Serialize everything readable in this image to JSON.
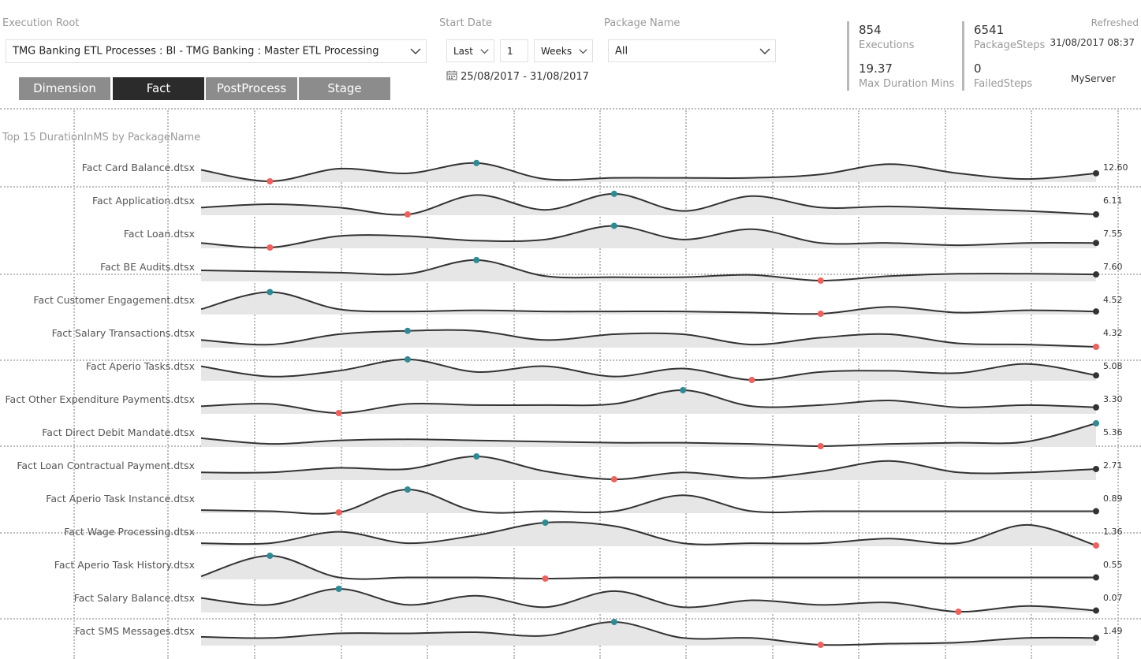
{
  "filters": {
    "execution_root_label": "Execution Root",
    "execution_root_value": "TMG Banking ETL Processes : BI - TMG Banking : Master ETL Processing",
    "start_date_label": "Start Date",
    "period_mode": "Last",
    "period_count": "1",
    "period_unit": "Weeks",
    "date_range": "25/08/2017 - 31/08/2017",
    "package_name_label": "Package Name",
    "package_name_value": "All"
  },
  "tabs": [
    {
      "label": "Dimension",
      "active": false
    },
    {
      "label": "Fact",
      "active": true
    },
    {
      "label": "PostProcess",
      "active": false
    },
    {
      "label": "Stage",
      "active": false
    }
  ],
  "kpis": {
    "executions_value": "854",
    "executions_label": "Executions",
    "max_duration_value": "19.37",
    "max_duration_label": "Max Duration Mins",
    "package_steps_value": "6541",
    "package_steps_label": "PackageSteps",
    "failed_steps_value": "0",
    "failed_steps_label": "FailedSteps",
    "refreshed_label": "Refreshed",
    "refreshed_value": "31/08/2017 08:37",
    "server": "MyServer"
  },
  "colors": {
    "max_marker": "#2e8b96",
    "min_marker": "#f0605d",
    "last_marker": "#333333",
    "area": "#e6e6e6",
    "line": "#333333"
  },
  "chart_data": {
    "type": "line",
    "title": "Top 15  DurationInMS by PackageName",
    "series": [
      {
        "name": "Fact Card Balance.dtsx",
        "last": "12.60",
        "values": [
          0.5,
          0,
          0.55,
          0.35,
          0.8,
          0.1,
          0.15,
          0.15,
          0.15,
          0.3,
          0.75,
          0.35,
          0.1,
          0.35
        ],
        "max_index": 4,
        "min_index": 1
      },
      {
        "name": "Fact Application.dtsx",
        "last": "6.11",
        "values": [
          0.3,
          0.45,
          0.3,
          0,
          0.85,
          0.2,
          0.9,
          0.15,
          0.8,
          0.3,
          0.35,
          0.25,
          0.15,
          0
        ],
        "max_index": 6,
        "min_index": 3
      },
      {
        "name": "Fact Loan.dtsx",
        "last": "7.55",
        "values": [
          0.2,
          0,
          0.5,
          0.5,
          0.3,
          0.35,
          0.95,
          0.35,
          0.8,
          0.2,
          0.2,
          0.1,
          0.2,
          0.2
        ],
        "max_index": 6,
        "min_index": 1
      },
      {
        "name": "Fact BE Audits.dtsx",
        "last": "7.60",
        "values": [
          0.45,
          0.4,
          0.35,
          0.3,
          0.9,
          0.2,
          0.15,
          0.15,
          0.25,
          0,
          0.2,
          0.3,
          0.3,
          0.27
        ],
        "max_index": 4,
        "min_index": 9
      },
      {
        "name": "Fact Customer Engagement.dtsx",
        "last": "4.52",
        "values": [
          0.2,
          0.95,
          0.2,
          0.1,
          0.15,
          0.1,
          0.1,
          0.1,
          0.05,
          0,
          0.3,
          0.05,
          0.15,
          0.1
        ],
        "max_index": 1,
        "min_index": 9
      },
      {
        "name": "Fact Salary Transactions.dtsx",
        "last": "4.32",
        "values": [
          0.3,
          0.1,
          0.55,
          0.7,
          0.7,
          0.3,
          0.55,
          0.55,
          0.1,
          0.4,
          0.55,
          0.15,
          0.1,
          0
        ],
        "max_index": 3,
        "min_index": 13
      },
      {
        "name": "Fact Aperio Tasks.dtsx",
        "last": "5.08",
        "values": [
          0.6,
          0.15,
          0.4,
          0.9,
          0.35,
          0.6,
          0.15,
          0.5,
          0,
          0.35,
          0.4,
          0.3,
          0.7,
          0.2
        ],
        "max_index": 3,
        "min_index": 8
      },
      {
        "name": "Fact Other Expenditure Payments.dtsx",
        "last": "3.30",
        "values": [
          0.3,
          0.4,
          0,
          0.4,
          0.35,
          0.35,
          0.4,
          1,
          0.3,
          0.35,
          0.55,
          0.25,
          0.35,
          0.25
        ],
        "max_index": 7,
        "min_index": 2
      },
      {
        "name": "Fact Direct Debit Mandate.dtsx",
        "last": "5.36",
        "values": [
          0.35,
          0.1,
          0.25,
          0.3,
          0.25,
          0.2,
          0.15,
          0.15,
          0.1,
          0,
          0.1,
          0.15,
          0.2,
          1
        ],
        "max_index": 13,
        "min_index": 9
      },
      {
        "name": "Fact Loan Contractual Payment.dtsx",
        "last": "2.71",
        "values": [
          0.3,
          0.3,
          0.5,
          0.45,
          1,
          0.35,
          0,
          0.3,
          0.05,
          0.35,
          0.8,
          0.3,
          0.3,
          0.45
        ],
        "max_index": 4,
        "min_index": 6
      },
      {
        "name": "Fact Aperio Task Instance.dtsx",
        "last": "0.89",
        "values": [
          0.1,
          0.05,
          0,
          1,
          0.05,
          0.05,
          0.05,
          0.75,
          0.05,
          0.05,
          0.05,
          0.05,
          0.05,
          0.05
        ],
        "max_index": 3,
        "min_index": 2
      },
      {
        "name": "Fact Wage Processing.dtsx",
        "last": "1.36",
        "values": [
          0.1,
          0.1,
          0.6,
          0.1,
          0.45,
          1,
          0.85,
          0.1,
          0.1,
          0.1,
          0.3,
          0.1,
          0.9,
          0
        ],
        "max_index": 5,
        "min_index": 13
      },
      {
        "name": "Fact Aperio Task History.dtsx",
        "last": "0.55",
        "values": [
          0.1,
          1,
          0.05,
          0.05,
          0.05,
          0,
          0.05,
          0.05,
          0.05,
          0.05,
          0.05,
          0.05,
          0.05,
          0.05
        ],
        "max_index": 1,
        "min_index": 5
      },
      {
        "name": "Fact Salary Balance.dtsx",
        "last": "0.07",
        "values": [
          0.6,
          0.3,
          1,
          0.3,
          0.7,
          0.2,
          0.9,
          0.2,
          0.5,
          0.3,
          0.4,
          0,
          0.25,
          0.05
        ],
        "max_index": 2,
        "min_index": 11
      },
      {
        "name": "Fact SMS Messages.dtsx",
        "last": "1.49",
        "values": [
          0.35,
          0.3,
          0.5,
          0.5,
          0.55,
          0.4,
          1,
          0.3,
          0.3,
          0,
          0.05,
          0.1,
          0.3,
          0.3
        ],
        "max_index": 6,
        "min_index": 9
      }
    ]
  }
}
